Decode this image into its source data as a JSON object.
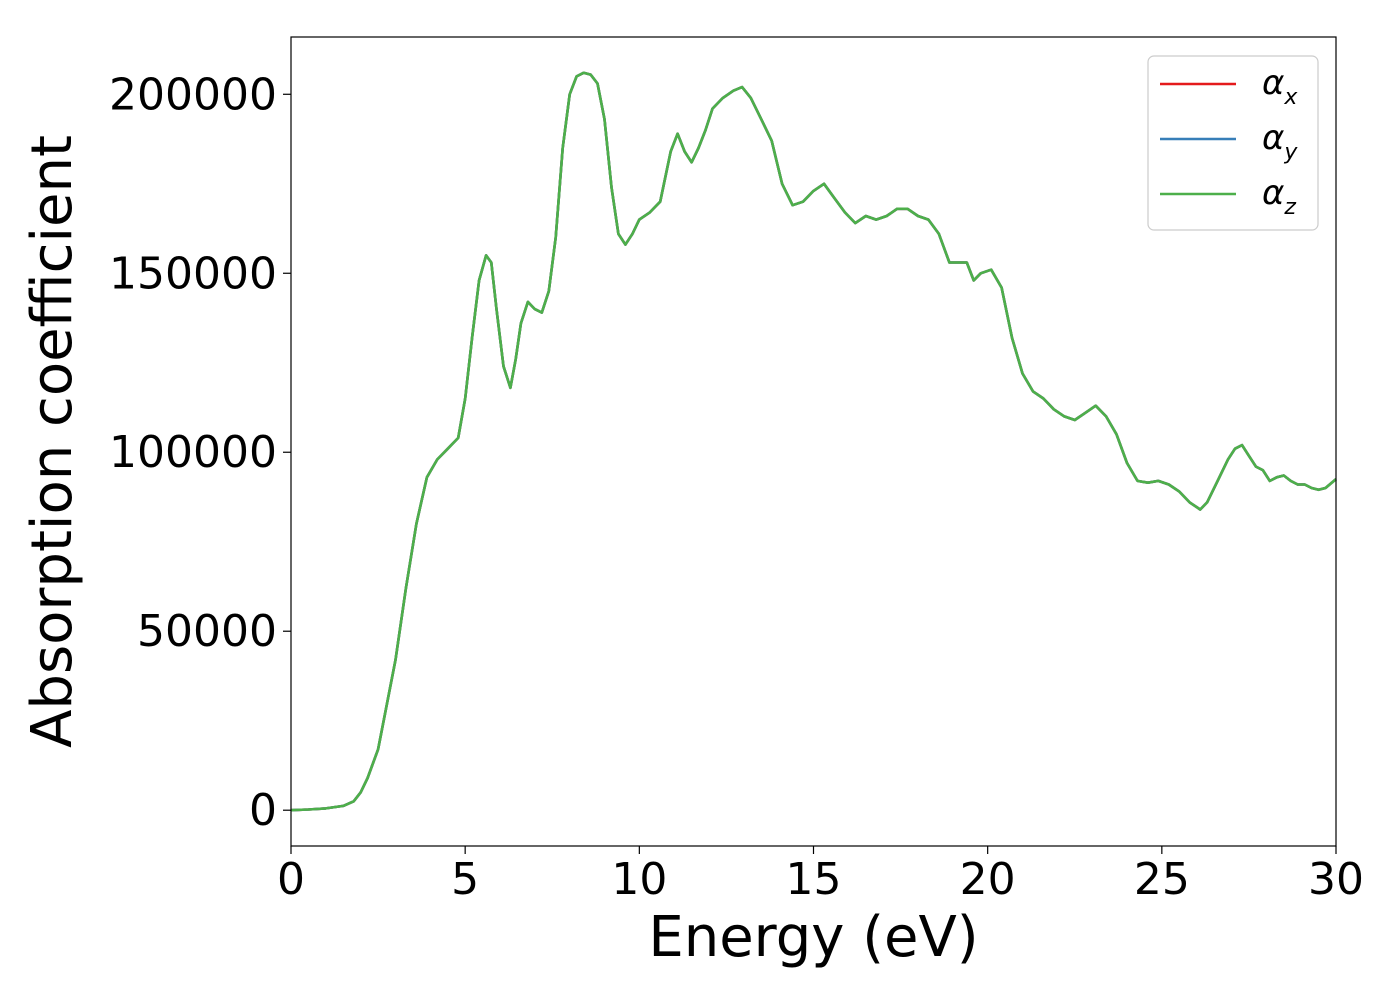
{
  "chart_data": {
    "type": "line",
    "title": "",
    "xlabel": "Energy (eV)",
    "ylabel": "Absorption coefficient",
    "xlim": [
      0,
      30
    ],
    "ylim": [
      -10000,
      216000
    ],
    "xticks": [
      0,
      5,
      10,
      15,
      20,
      25,
      30
    ],
    "yticks": [
      0,
      50000,
      100000,
      150000,
      200000
    ],
    "xtick_labels": [
      "0",
      "5",
      "10",
      "15",
      "20",
      "25",
      "30"
    ],
    "ytick_labels": [
      "0",
      "50000",
      "100000",
      "150000",
      "200000"
    ],
    "grid": false,
    "legend_position": "top-right",
    "x": [
      0,
      0.5,
      1,
      1.5,
      1.8,
      2,
      2.2,
      2.5,
      3,
      3.3,
      3.6,
      3.9,
      4.2,
      4.5,
      4.8,
      5,
      5.2,
      5.4,
      5.6,
      5.75,
      5.9,
      6.1,
      6.3,
      6.45,
      6.6,
      6.8,
      7,
      7.2,
      7.4,
      7.6,
      7.8,
      8,
      8.2,
      8.4,
      8.6,
      8.8,
      9,
      9.2,
      9.4,
      9.6,
      9.8,
      10,
      10.3,
      10.6,
      10.9,
      11.1,
      11.3,
      11.5,
      11.7,
      11.9,
      12.1,
      12.4,
      12.7,
      12.95,
      13.2,
      13.5,
      13.8,
      14.1,
      14.4,
      14.7,
      15,
      15.3,
      15.6,
      15.9,
      16.2,
      16.5,
      16.8,
      17.1,
      17.4,
      17.7,
      18,
      18.3,
      18.6,
      18.9,
      19.2,
      19.4,
      19.6,
      19.8,
      20.1,
      20.4,
      20.7,
      21,
      21.3,
      21.6,
      21.9,
      22.2,
      22.5,
      22.8,
      23.1,
      23.4,
      23.7,
      24,
      24.3,
      24.6,
      24.9,
      25.2,
      25.5,
      25.8,
      26.1,
      26.3,
      26.6,
      26.9,
      27.1,
      27.3,
      27.5,
      27.7,
      27.9,
      28.1,
      28.3,
      28.5,
      28.7,
      28.9,
      29.1,
      29.3,
      29.5,
      29.7,
      30
    ],
    "series": [
      {
        "name": "α_x",
        "color": "#e41a1c",
        "y": [
          0,
          200,
          500,
          1200,
          2500,
          5000,
          9000,
          17000,
          42000,
          62000,
          80000,
          93000,
          98000,
          101000,
          104000,
          115000,
          132000,
          148000,
          155000,
          153000,
          140000,
          124000,
          118000,
          126000,
          136000,
          142000,
          140000,
          139000,
          145000,
          160000,
          185000,
          200000,
          205000,
          206000,
          205500,
          203000,
          193000,
          174000,
          161000,
          158000,
          161000,
          165000,
          167000,
          170000,
          184000,
          189000,
          184000,
          181000,
          185000,
          190000,
          196000,
          199000,
          201000,
          202000,
          199000,
          193000,
          187000,
          175000,
          169000,
          170000,
          173000,
          175000,
          171000,
          167000,
          164000,
          166000,
          165000,
          166000,
          168000,
          168000,
          166000,
          165000,
          161000,
          153000,
          153000,
          153000,
          148000,
          150000,
          151000,
          146000,
          132000,
          122000,
          117000,
          115000,
          112000,
          110000,
          109000,
          111000,
          113000,
          110000,
          105000,
          97000,
          92000,
          91500,
          92000,
          91000,
          89000,
          86000,
          84000,
          86000,
          92000,
          98000,
          101000,
          102000,
          99000,
          96000,
          95000,
          92000,
          93000,
          93500,
          92000,
          91000,
          91000,
          90000,
          89500,
          90000,
          92500
        ]
      },
      {
        "name": "α_y",
        "color": "#377eb8",
        "y": [
          0,
          200,
          500,
          1200,
          2500,
          5000,
          9000,
          17000,
          42000,
          62000,
          80000,
          93000,
          98000,
          101000,
          104000,
          115000,
          132000,
          148000,
          155000,
          153000,
          140000,
          124000,
          118000,
          126000,
          136000,
          142000,
          140000,
          139000,
          145000,
          160000,
          185000,
          200000,
          205000,
          206000,
          205500,
          203000,
          193000,
          174000,
          161000,
          158000,
          161000,
          165000,
          167000,
          170000,
          184000,
          189000,
          184000,
          181000,
          185000,
          190000,
          196000,
          199000,
          201000,
          202000,
          199000,
          193000,
          187000,
          175000,
          169000,
          170000,
          173000,
          175000,
          171000,
          167000,
          164000,
          166000,
          165000,
          166000,
          168000,
          168000,
          166000,
          165000,
          161000,
          153000,
          153000,
          153000,
          148000,
          150000,
          151000,
          146000,
          132000,
          122000,
          117000,
          115000,
          112000,
          110000,
          109000,
          111000,
          113000,
          110000,
          105000,
          97000,
          92000,
          91500,
          92000,
          91000,
          89000,
          86000,
          84000,
          86000,
          92000,
          98000,
          101000,
          102000,
          99000,
          96000,
          95000,
          92000,
          93000,
          93500,
          92000,
          91000,
          91000,
          90000,
          89500,
          90000,
          92500
        ]
      },
      {
        "name": "α_z",
        "color": "#4daf4a",
        "y": [
          0,
          200,
          500,
          1200,
          2500,
          5000,
          9000,
          17000,
          42000,
          62000,
          80000,
          93000,
          98000,
          101000,
          104000,
          115000,
          132000,
          148000,
          155000,
          153000,
          140000,
          124000,
          118000,
          126000,
          136000,
          142000,
          140000,
          139000,
          145000,
          160000,
          185000,
          200000,
          205000,
          206000,
          205500,
          203000,
          193000,
          174000,
          161000,
          158000,
          161000,
          165000,
          167000,
          170000,
          184000,
          189000,
          184000,
          181000,
          185000,
          190000,
          196000,
          199000,
          201000,
          202000,
          199000,
          193000,
          187000,
          175000,
          169000,
          170000,
          173000,
          175000,
          171000,
          167000,
          164000,
          166000,
          165000,
          166000,
          168000,
          168000,
          166000,
          165000,
          161000,
          153000,
          153000,
          153000,
          148000,
          150000,
          151000,
          146000,
          132000,
          122000,
          117000,
          115000,
          112000,
          110000,
          109000,
          111000,
          113000,
          110000,
          105000,
          97000,
          92000,
          91500,
          92000,
          91000,
          89000,
          86000,
          84000,
          86000,
          92000,
          98000,
          101000,
          102000,
          99000,
          96000,
          95000,
          92000,
          93000,
          93500,
          92000,
          91000,
          91000,
          90000,
          89500,
          90000,
          92500
        ]
      }
    ],
    "legend": [
      {
        "symbol": "α",
        "sub": "x",
        "color": "#e41a1c"
      },
      {
        "symbol": "α",
        "sub": "y",
        "color": "#377eb8"
      },
      {
        "symbol": "α",
        "sub": "z",
        "color": "#4daf4a"
      }
    ]
  }
}
